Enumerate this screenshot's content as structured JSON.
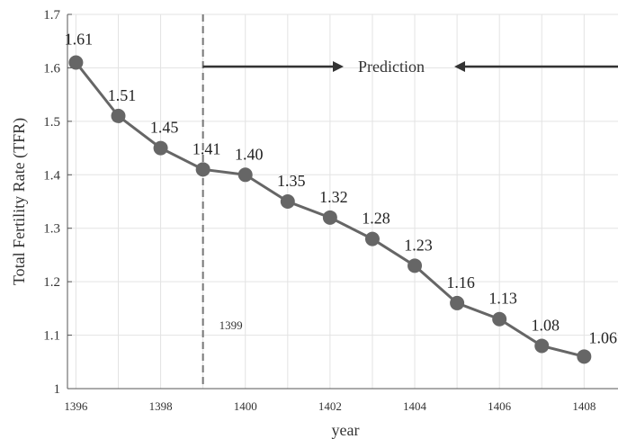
{
  "chart_data": {
    "type": "line",
    "title": "",
    "xlabel": "year",
    "ylabel": "Total Fertility Rate (TFR)",
    "x": [
      1396,
      1397,
      1398,
      1399,
      1400,
      1401,
      1402,
      1403,
      1404,
      1405,
      1406,
      1407,
      1408
    ],
    "values": [
      1.61,
      1.51,
      1.45,
      1.41,
      1.4,
      1.35,
      1.32,
      1.28,
      1.23,
      1.16,
      1.13,
      1.08,
      1.06
    ],
    "data_labels": [
      "1.61",
      "1.51",
      "1.45",
      "1.41",
      "1.40",
      "1.35",
      "1.32",
      "1.28",
      "1.23",
      "1.16",
      "1.13",
      "1.08",
      "1.06"
    ],
    "xlim": [
      1395.8,
      1408.8
    ],
    "ylim": [
      1.0,
      1.7
    ],
    "x_ticks": [
      "1396",
      "1398",
      "1400",
      "1402",
      "1404",
      "1406",
      "1408"
    ],
    "y_ticks": [
      "1",
      "1.1",
      "1.2",
      "1.3",
      "1.4",
      "1.5",
      "1.6",
      "1.7"
    ],
    "grid": true,
    "split_line": {
      "x": 1399,
      "label": "1399"
    },
    "annotation": {
      "text": "Prediction"
    },
    "colors": {
      "series": "#666666",
      "grid": "#e3e3e3",
      "arrow": "#333333"
    }
  }
}
